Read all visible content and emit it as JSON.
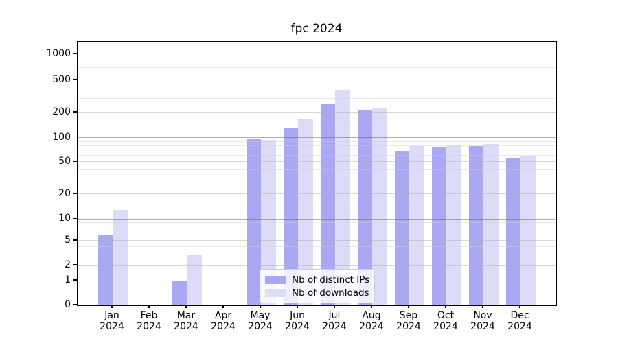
{
  "chart_data": {
    "type": "bar",
    "title": "fpc 2024",
    "categories": [
      "Jan",
      "Feb",
      "Mar",
      "Apr",
      "May",
      "Jun",
      "Jul",
      "Aug",
      "Sep",
      "Oct",
      "Nov",
      "Dec"
    ],
    "category_year": "2024",
    "series": [
      {
        "name": "Nb of distinct IPs",
        "color": "#a8a8f4",
        "values": [
          6,
          0,
          1,
          0,
          95,
          130,
          255,
          212,
          69,
          75,
          78,
          55
        ]
      },
      {
        "name": "Nb of downloads",
        "color": "#dcdcf8",
        "values": [
          13,
          0,
          3,
          0,
          94,
          170,
          378,
          224,
          78,
          80,
          84,
          58
        ]
      }
    ],
    "y_ticks": [
      0,
      1,
      2,
      5,
      10,
      20,
      50,
      100,
      200,
      500,
      1000
    ],
    "y_minor_ticks": [
      3,
      4,
      6,
      7,
      8,
      9,
      30,
      40,
      60,
      70,
      80,
      90,
      300,
      400,
      600,
      700,
      800,
      900
    ],
    "scale": "symlog",
    "ylim": [
      0,
      1400
    ],
    "grid": true,
    "legend_position": "lower center"
  }
}
